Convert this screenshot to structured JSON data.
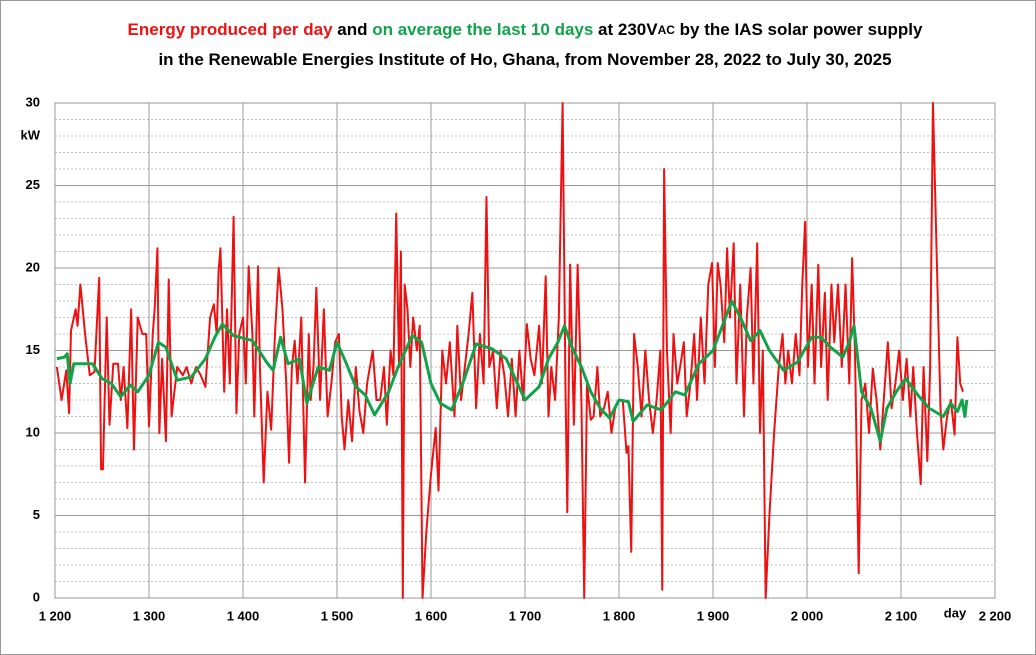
{
  "chart_data": {
    "type": "line",
    "title_lines": [
      [
        {
          "text": "Energy produced per day",
          "color": "#ee1111"
        },
        {
          "text": "  and ",
          "color": "#000000"
        },
        {
          "text": "on average the last 10 days",
          "color": "#11a34a"
        },
        {
          "text": " at 230V",
          "color": "#000000"
        },
        {
          "text": "AC",
          "color": "#000000",
          "small": true
        },
        {
          "text": " by the IAS solar power supply",
          "color": "#000000"
        }
      ],
      [
        {
          "text": "in the Renewable Energies Institute of Ho, Ghana, from November 28, 2022  to July 30, 2025",
          "color": "#000000"
        }
      ]
    ],
    "y_label": "kW",
    "x_label": "day",
    "xlim": [
      1200,
      2200
    ],
    "xticks": [
      {
        "value": 1200,
        "label": "1 200"
      },
      {
        "value": 1300,
        "label": "1 300"
      },
      {
        "value": 1400,
        "label": "1 400"
      },
      {
        "value": 1500,
        "label": "1 500"
      },
      {
        "value": 1600,
        "label": "1 600"
      },
      {
        "value": 1700,
        "label": "1 700"
      },
      {
        "value": 1800,
        "label": "1 800"
      },
      {
        "value": 1900,
        "label": "1 900"
      },
      {
        "value": 2000,
        "label": "2 000"
      },
      {
        "value": 2100,
        "label": "2 100"
      },
      {
        "value": 2200,
        "label": "2 200"
      }
    ],
    "ylim": [
      0,
      30
    ],
    "yticks": [
      0,
      5,
      10,
      15,
      20,
      25,
      30
    ],
    "yminorticks": [
      1,
      2,
      3,
      4,
      6,
      7,
      8,
      9,
      11,
      12,
      13,
      14,
      16,
      17,
      18,
      19,
      21,
      22,
      23,
      24,
      26,
      27,
      28,
      29
    ],
    "grid": true,
    "series": [
      {
        "color": "#ee1111",
        "width": 2,
        "x": [
          1202,
          1207,
          1212,
          1215,
          1217,
          1222,
          1224,
          1227,
          1232,
          1237,
          1242,
          1247,
          1249,
          1251,
          1255,
          1258,
          1262,
          1267,
          1270,
          1273,
          1277,
          1281,
          1284,
          1288,
          1293,
          1297,
          1300,
          1304,
          1306,
          1309,
          1311,
          1314,
          1318,
          1321,
          1324,
          1330,
          1336,
          1340,
          1345,
          1350,
          1355,
          1360,
          1365,
          1369,
          1372,
          1374,
          1376,
          1380,
          1383,
          1386,
          1390,
          1393,
          1396,
          1400,
          1403,
          1406,
          1410,
          1412,
          1416,
          1418,
          1422,
          1426,
          1430,
          1434,
          1438,
          1442,
          1446,
          1449,
          1452,
          1455,
          1458,
          1462,
          1466,
          1470,
          1472,
          1475,
          1478,
          1482,
          1486,
          1490,
          1494,
          1498,
          1502,
          1505,
          1508,
          1512,
          1516,
          1520,
          1524,
          1528,
          1532,
          1535,
          1538,
          1542,
          1546,
          1550,
          1553,
          1557,
          1560,
          1563,
          1566,
          1568,
          1570,
          1572,
          1575,
          1578,
          1581,
          1585,
          1588,
          1591,
          1595,
          1600,
          1605,
          1608,
          1612,
          1616,
          1620,
          1625,
          1628,
          1632,
          1636,
          1640,
          1644,
          1648,
          1652,
          1656,
          1659,
          1662,
          1666,
          1670,
          1674,
          1678,
          1682,
          1686,
          1690,
          1694,
          1698,
          1702,
          1706,
          1710,
          1715,
          1718,
          1722,
          1725,
          1728,
          1732,
          1736,
          1740,
          1743,
          1745,
          1748,
          1752,
          1756,
          1760,
          1763,
          1766,
          1770,
          1773,
          1777,
          1780,
          1784,
          1788,
          1792,
          1796,
          1800,
          1804,
          1808,
          1810,
          1813,
          1816,
          1820,
          1824,
          1828,
          1832,
          1836,
          1840,
          1844,
          1846,
          1848,
          1851,
          1855,
          1858,
          1862,
          1865,
          1869,
          1872,
          1876,
          1880,
          1883,
          1887,
          1891,
          1895,
          1899,
          1902,
          1905,
          1908,
          1912,
          1915,
          1918,
          1922,
          1925,
          1929,
          1933,
          1936,
          1940,
          1943,
          1947,
          1950,
          1953,
          1956,
          1960,
          1965,
          1970,
          1974,
          1977,
          1980,
          1984,
          1988,
          1992,
          1995,
          1998,
          2001,
          2005,
          2008,
          2012,
          2015,
          2019,
          2022,
          2026,
          2029,
          2033,
          2037,
          2041,
          2045,
          2048,
          2051,
          2055,
          2058,
          2062,
          2066,
          2070,
          2074,
          2078,
          2082,
          2086,
          2090,
          2094,
          2098,
          2102,
          2106,
          2110,
          2113,
          2117,
          2121,
          2124,
          2128,
          2131,
          2134,
          2137,
          2142,
          2145,
          2149,
          2153,
          2157,
          2160,
          2163,
          2166
        ],
        "values": [
          14,
          12,
          13.8,
          11.2,
          16.2,
          17.5,
          16.5,
          19,
          16,
          13.5,
          13.7,
          19.4,
          7.8,
          7.8,
          17,
          10.5,
          14.2,
          14.2,
          12,
          14,
          10.3,
          17.5,
          9,
          17,
          16,
          16,
          10.4,
          16,
          17.5,
          21.2,
          10,
          14.5,
          9.5,
          19.3,
          11,
          14,
          13.5,
          14,
          13,
          14,
          13.5,
          12.8,
          17,
          17.8,
          16,
          19.8,
          21.2,
          12.5,
          17.5,
          13,
          23.1,
          11.2,
          16,
          17,
          13,
          20.1,
          16,
          11,
          20.1,
          14,
          7,
          12.5,
          10.2,
          16,
          20,
          17.5,
          13,
          8.2,
          14,
          15.6,
          13,
          17,
          7,
          16,
          12,
          14,
          18.8,
          12,
          17.5,
          11,
          13,
          15.5,
          16,
          11,
          9,
          12,
          9.5,
          14,
          11.3,
          10,
          13,
          14,
          15,
          12,
          12,
          14,
          10.5,
          15,
          13.5,
          23.3,
          14,
          21,
          0,
          19,
          17.5,
          14,
          17,
          15,
          16.5,
          0,
          4,
          7.5,
          10.3,
          6.5,
          15,
          13,
          15.5,
          11,
          16.5,
          12,
          14,
          16,
          18.5,
          11.5,
          16,
          13,
          24.3,
          14,
          15,
          11.5,
          15,
          13.5,
          11,
          14.5,
          11,
          15,
          12,
          16.6,
          14.5,
          13.5,
          16.5,
          13,
          19.5,
          11,
          14,
          12,
          17,
          30,
          13,
          5.2,
          20.2,
          10.5,
          20.2,
          12,
          0,
          13,
          10.8,
          11,
          14,
          11,
          11.5,
          12.5,
          10,
          11.5,
          12,
          12,
          8.8,
          9.2,
          2.8,
          16,
          14,
          11,
          15,
          12,
          10,
          12,
          15,
          0.5,
          26,
          15,
          10,
          16,
          13,
          14,
          15.5,
          11,
          13,
          16,
          12,
          17,
          13,
          19,
          20.3,
          14,
          20.3,
          19,
          15.5,
          21.2,
          17,
          21.5,
          13,
          19,
          11,
          17,
          20,
          13,
          21.5,
          10,
          15,
          0,
          5,
          10,
          14,
          16,
          13,
          15,
          13,
          16,
          13.5,
          19,
          22.8,
          14,
          19,
          13,
          20.2,
          14,
          18.5,
          12,
          19,
          15.5,
          19,
          14,
          19,
          13,
          20.6,
          15,
          1.5,
          12,
          13,
          10,
          13.9,
          12,
          9,
          12.3,
          15.5,
          11.5,
          13,
          15,
          12,
          14.5,
          11,
          14,
          10,
          6.9,
          14,
          8.3,
          14,
          30,
          23,
          11.5,
          9,
          11,
          12,
          9.9,
          15.8,
          13,
          12.5
        ]
      },
      {
        "color": "#11a34a",
        "width": 3,
        "x": [
          1202,
          1210,
          1213,
          1216,
          1220,
          1240,
          1250,
          1260,
          1270,
          1280,
          1288,
          1300,
          1310,
          1318,
          1330,
          1345,
          1360,
          1370,
          1378,
          1390,
          1410,
          1425,
          1432,
          1440,
          1448,
          1460,
          1468,
          1480,
          1492,
          1500,
          1510,
          1520,
          1530,
          1540,
          1555,
          1565,
          1580,
          1590,
          1600,
          1610,
          1622,
          1635,
          1648,
          1665,
          1680,
          1692,
          1700,
          1715,
          1725,
          1735,
          1742,
          1750,
          1760,
          1770,
          1780,
          1790,
          1800,
          1810,
          1815,
          1830,
          1845,
          1860,
          1870,
          1885,
          1900,
          1910,
          1920,
          1930,
          1940,
          1950,
          1960,
          1975,
          1990,
          1995,
          2005,
          2015,
          2025,
          2038,
          2045,
          2050,
          2058,
          2068,
          2078,
          2085,
          2095,
          2105,
          2118,
          2130,
          2145,
          2153,
          2160,
          2165,
          2168,
          2170
        ],
        "values": [
          14.5,
          14.6,
          14.8,
          13,
          14.2,
          14.2,
          13.3,
          13,
          12.2,
          12.9,
          12.5,
          13.5,
          15.5,
          15.2,
          13.2,
          13.4,
          14.5,
          15.8,
          16.6,
          15.9,
          15.6,
          14.3,
          13.8,
          15.8,
          14.2,
          14.5,
          11.8,
          14,
          13.8,
          15.5,
          14.2,
          12.8,
          12.3,
          11.1,
          12.5,
          14,
          15.9,
          15.5,
          13,
          11.8,
          11.4,
          13.2,
          15.4,
          15.1,
          14.5,
          13,
          12,
          12.8,
          14.5,
          15.5,
          16.5,
          15.2,
          14,
          12.5,
          11.5,
          10.9,
          12,
          11.9,
          10.7,
          11.7,
          11.4,
          12.5,
          12.3,
          14.2,
          15,
          16.5,
          18,
          16.9,
          15.6,
          16.2,
          15,
          13.8,
          14.3,
          14.8,
          15.8,
          15.8,
          15.2,
          14.6,
          15.5,
          16.5,
          12.5,
          11.5,
          9.5,
          11.5,
          12.5,
          13.3,
          12.3,
          11.5,
          11,
          11.8,
          11.3,
          12,
          11,
          12
        ]
      }
    ]
  }
}
